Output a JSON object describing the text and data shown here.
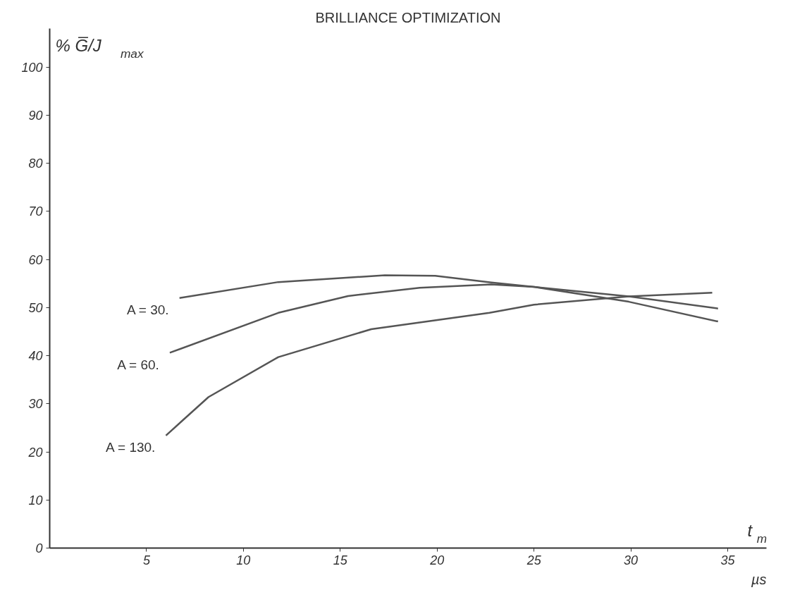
{
  "chart_data": {
    "type": "line",
    "title": "BRILLIANCE OPTIMIZATION",
    "xlabel": "t$_{m}$",
    "ylabel": "%  G̅/J$_{max}$",
    "annotations": [
      "µs"
    ],
    "xlim": [
      0,
      37
    ],
    "xticks": [
      5,
      10,
      15,
      20,
      25,
      30,
      35
    ],
    "ylim": [
      0,
      108
    ],
    "yticks": [
      0,
      10,
      20,
      30,
      40,
      50,
      60,
      70,
      80,
      90,
      100
    ],
    "grid": false,
    "marker": "none",
    "line_style": "solid",
    "series": [
      {
        "name": "A = 30.",
        "color": "#555555",
        "x": [
          6.7,
          11.8,
          17.3,
          19.9,
          22.8,
          25.0,
          29.9,
          34.5
        ],
        "values": [
          52.0,
          55.3,
          56.7,
          56.6,
          55.2,
          54.3,
          51.2,
          47.1
        ]
      },
      {
        "name": "A = 60.",
        "color": "#555555",
        "x": [
          6.2,
          11.8,
          15.4,
          19.1,
          22.8,
          25.0,
          29.9,
          34.5
        ],
        "values": [
          40.6,
          48.9,
          52.4,
          54.1,
          54.8,
          54.3,
          52.3,
          49.8
        ]
      },
      {
        "name": "A = 130.",
        "color": "#555555",
        "x": [
          6.0,
          8.2,
          11.8,
          16.6,
          22.7,
          25.0,
          29.9,
          34.2
        ],
        "values": [
          23.4,
          31.4,
          39.7,
          45.5,
          48.9,
          50.6,
          52.3,
          53.1
        ]
      }
    ]
  }
}
